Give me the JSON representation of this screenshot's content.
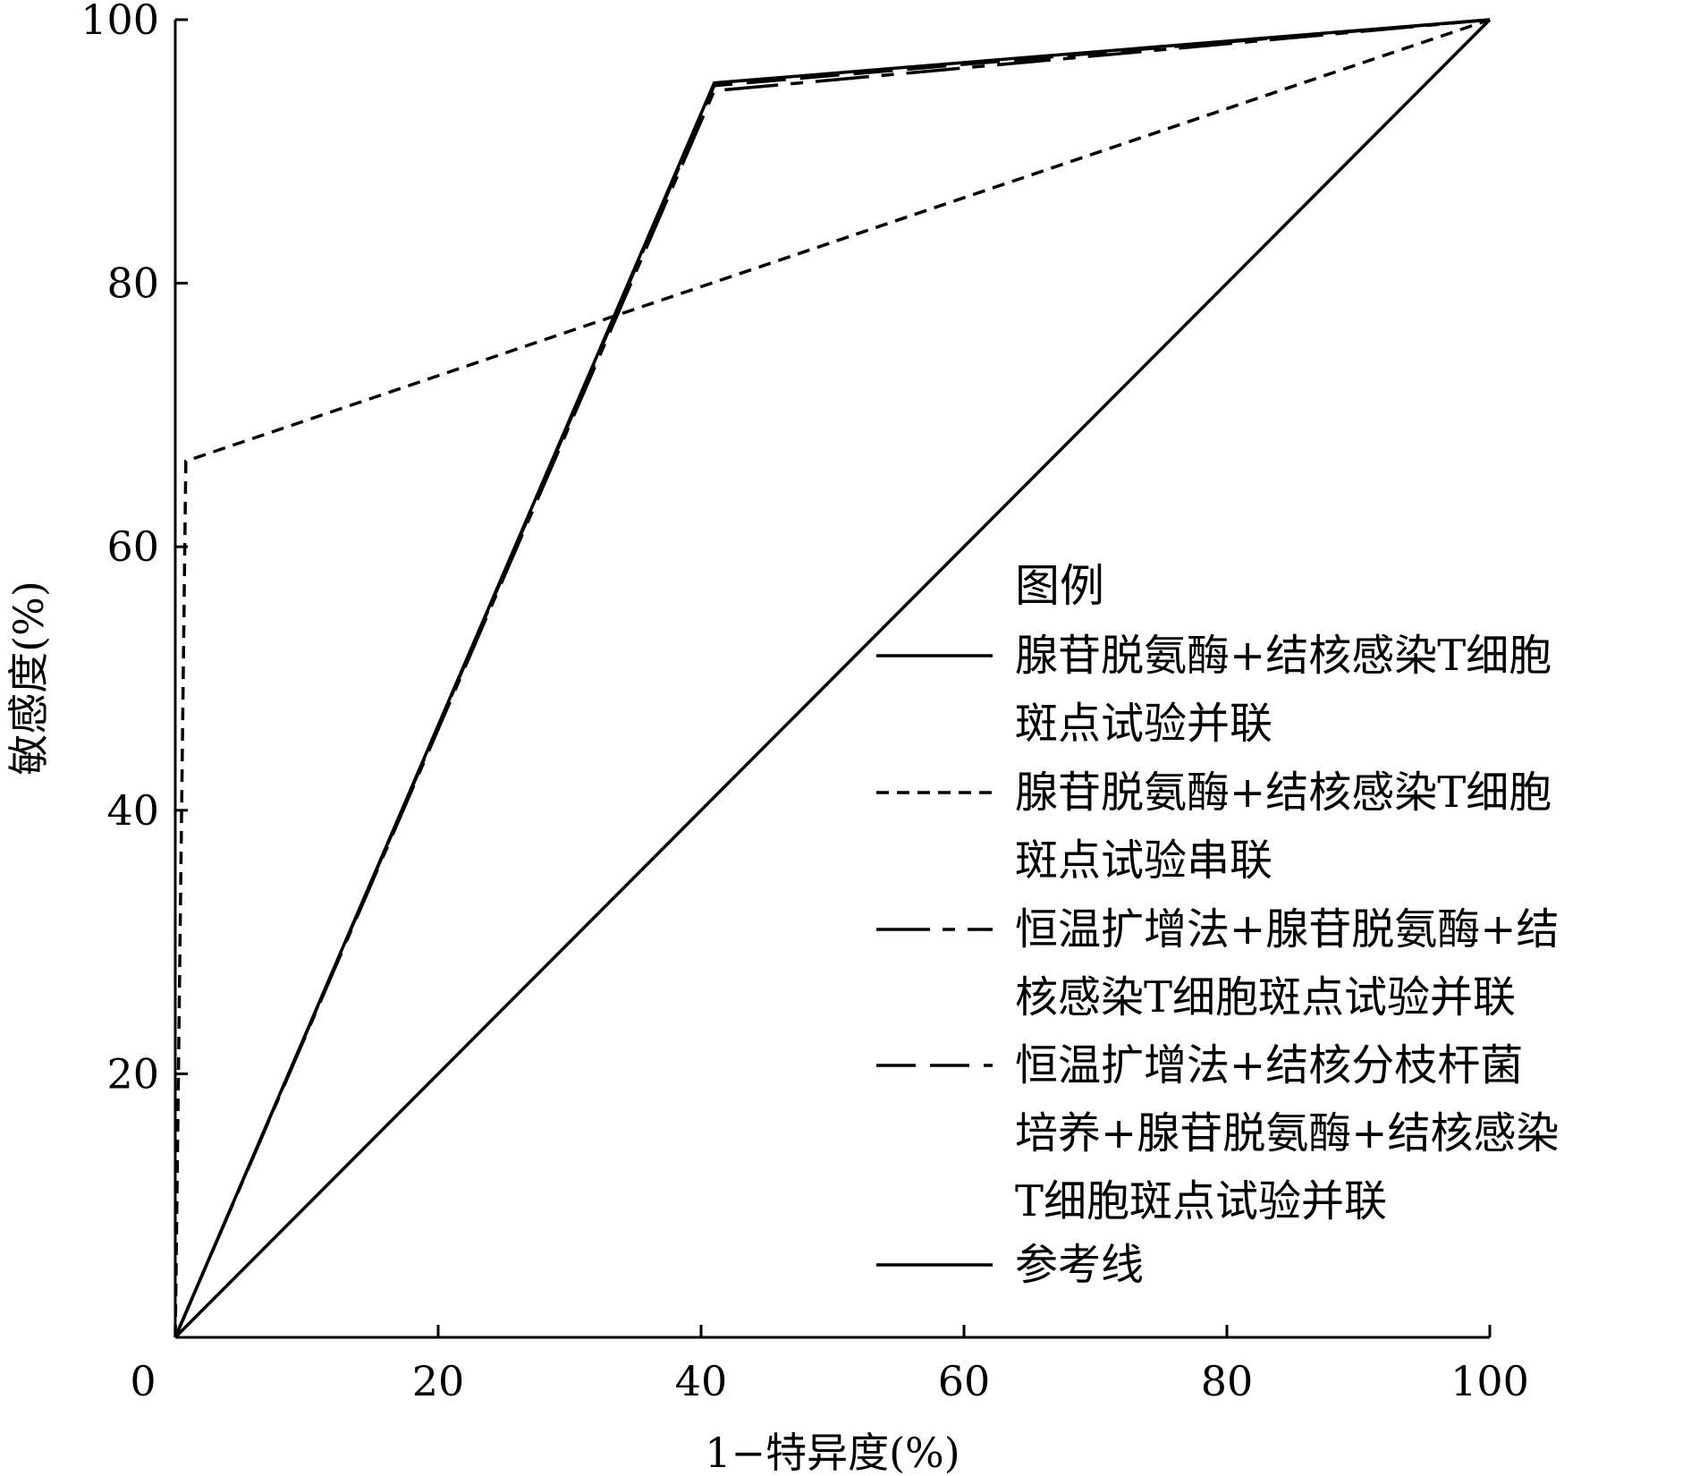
{
  "chart_data": {
    "type": "line",
    "xlabel": "1−特异度(%)",
    "ylabel": "敏感度(%)",
    "xlim": [
      0,
      100
    ],
    "ylim": [
      0,
      100
    ],
    "x_ticks": [
      "0",
      "20",
      "40",
      "60",
      "80",
      "100"
    ],
    "y_ticks": [
      "20",
      "40",
      "60",
      "80",
      "100"
    ],
    "legend": {
      "title": "图例",
      "placement": "bottom-right, inside plot"
    },
    "series": [
      {
        "name": "腺苷脱氨酶+结核感染T细胞斑点试验并联",
        "legend_lines": [
          "腺苷脱氨酶+结核感染T细胞",
          "斑点试验并联"
        ],
        "style": "solid",
        "x": [
          0,
          41,
          100
        ],
        "y": [
          0,
          95.2,
          100
        ]
      },
      {
        "name": "腺苷脱氨酶+结核感染T细胞斑点试验串联",
        "legend_lines": [
          "腺苷脱氨酶+结核感染T细胞",
          "斑点试验串联"
        ],
        "style": "short-dash",
        "x": [
          0,
          0.8,
          100
        ],
        "y": [
          0,
          66.5,
          100
        ]
      },
      {
        "name": "恒温扩增法+腺苷脱氨酶+结核感染T细胞斑点试验并联",
        "legend_lines": [
          "恒温扩增法+腺苷脱氨酶+结",
          "核感染T细胞斑点试验并联"
        ],
        "style": "long-short-dash",
        "x": [
          0,
          41,
          100
        ],
        "y": [
          0,
          94.6,
          100
        ]
      },
      {
        "name": "恒温扩增法+结核分枝杆菌培养+腺苷脱氨酶+结核感染T细胞斑点试验并联",
        "legend_lines": [
          "恒温扩增法+结核分枝杆菌",
          "培养+腺苷脱氨酶+结核感染",
          "T细胞斑点试验并联"
        ],
        "style": "long-dash",
        "x": [
          0,
          41,
          100
        ],
        "y": [
          0,
          95,
          100
        ]
      },
      {
        "name": "参考线",
        "legend_lines": [
          "参考线"
        ],
        "style": "solid",
        "x": [
          0,
          100
        ],
        "y": [
          0,
          100
        ]
      }
    ]
  }
}
